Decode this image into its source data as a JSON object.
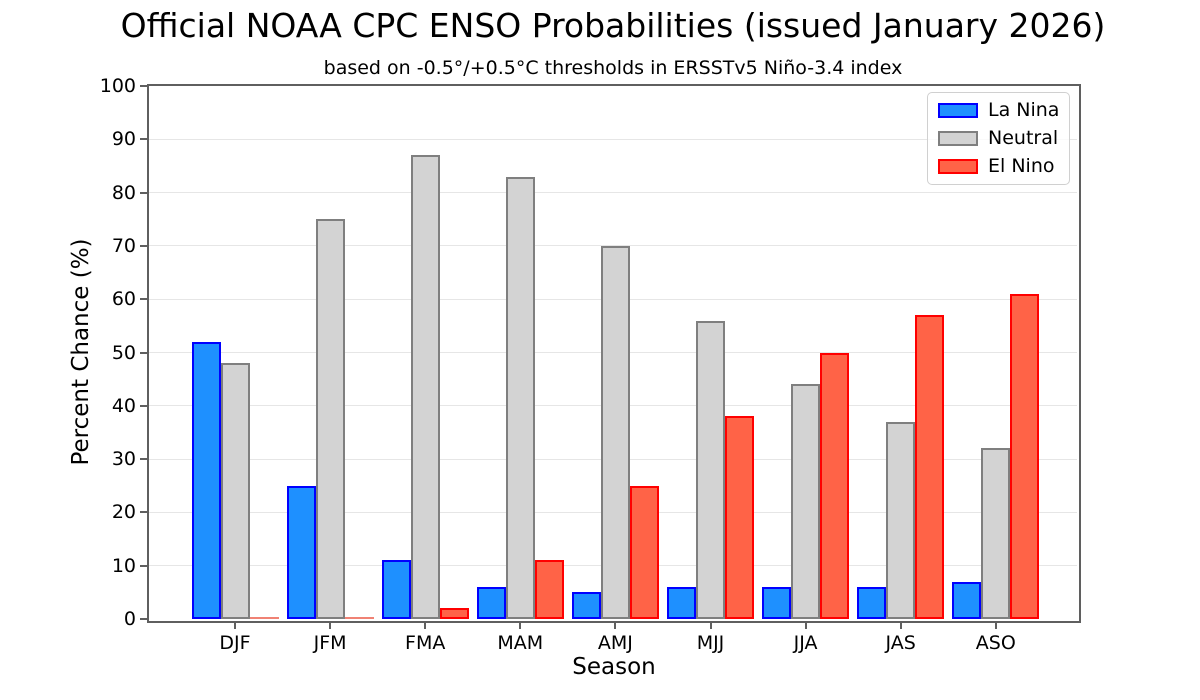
{
  "chart_data": {
    "type": "bar",
    "title": "Official NOAA CPC ENSO Probabilities (issued January 2026)",
    "subtitle": "based on -0.5°/+0.5°C thresholds in ERSSTv5 Niño-3.4 index",
    "xlabel": "Season",
    "ylabel": "Percent Chance (%)",
    "categories": [
      "DJF",
      "JFM",
      "FMA",
      "MAM",
      "AMJ",
      "MJJ",
      "JJA",
      "JAS",
      "ASO"
    ],
    "series": [
      {
        "name": "La Nina",
        "fill": "#1e90ff",
        "edge": "#0000ff",
        "values": [
          52,
          25,
          11,
          6,
          5,
          6,
          6,
          6,
          7
        ]
      },
      {
        "name": "Neutral",
        "fill": "#d3d3d3",
        "edge": "#7f7f7f",
        "values": [
          48,
          75,
          87,
          83,
          70,
          56,
          44,
          37,
          32
        ]
      },
      {
        "name": "El Nino",
        "fill": "#ff6347",
        "edge": "#ff0000",
        "values": [
          0,
          0,
          2,
          11,
          25,
          38,
          50,
          57,
          61
        ]
      }
    ],
    "ylim": [
      0,
      100
    ],
    "yticks": [
      0,
      10,
      20,
      30,
      40,
      50,
      60,
      70,
      80,
      90,
      100
    ],
    "grid": "horizontal",
    "legend_position": "top-right",
    "zero_bar_color": "#f08274"
  }
}
